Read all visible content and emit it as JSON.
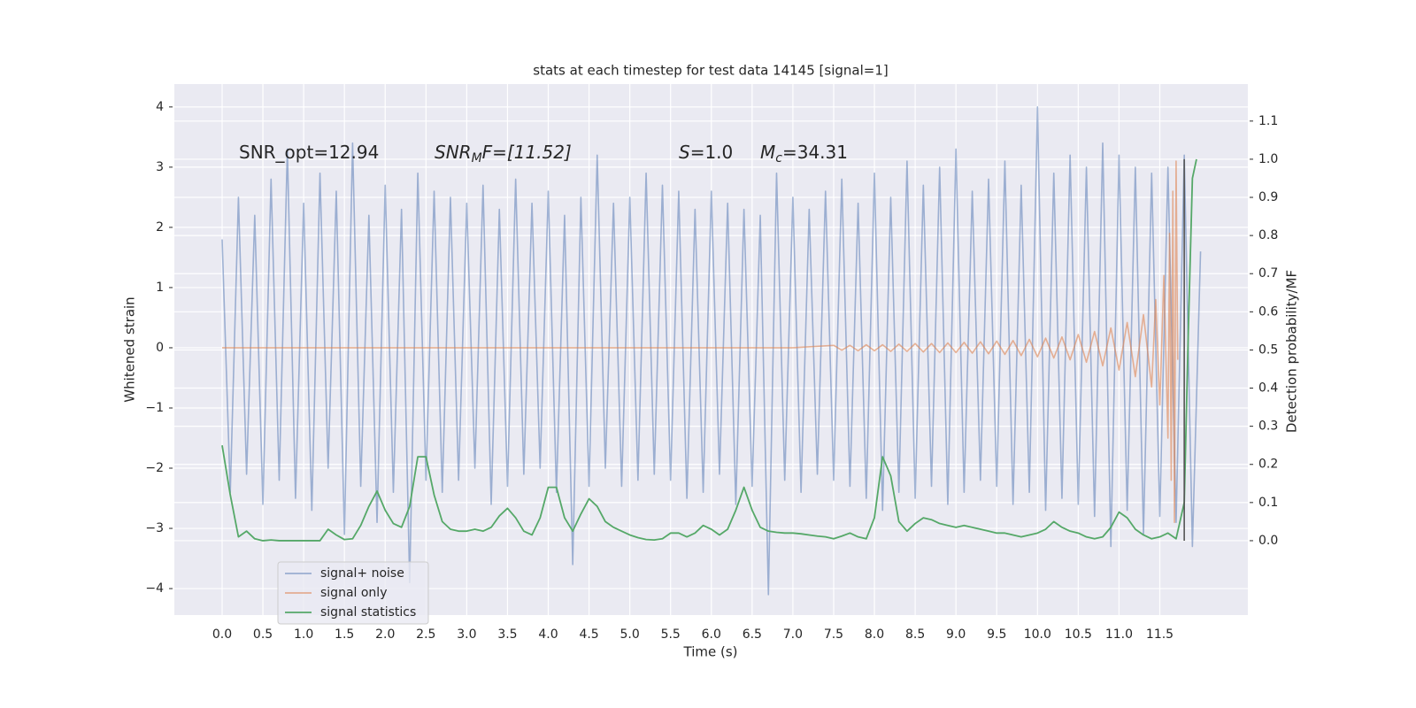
{
  "chart_data": {
    "type": "line",
    "title": "stats at each timestep for test data 14145 [signal=1]",
    "xlabel": "Time (s)",
    "ylabel": "Whitened strain",
    "y2label": "Detection probability/MF",
    "xlim": [
      -0.586,
      12.58
    ],
    "ylim": [
      -4.44,
      4.38
    ],
    "y2lim": [
      -0.195,
      1.197
    ],
    "xticks": [
      {
        "value": 0,
        "label": "0.0"
      },
      {
        "value": 0.5,
        "label": "0.5"
      },
      {
        "value": 1,
        "label": "1.0"
      },
      {
        "value": 1.5,
        "label": "1.5"
      },
      {
        "value": 2,
        "label": "2.0"
      },
      {
        "value": 2.5,
        "label": "2.5"
      },
      {
        "value": 3,
        "label": "3.0"
      },
      {
        "value": 3.5,
        "label": "3.5"
      },
      {
        "value": 4,
        "label": "4.0"
      },
      {
        "value": 4.5,
        "label": "4.5"
      },
      {
        "value": 5,
        "label": "5.0"
      },
      {
        "value": 5.5,
        "label": "5.5"
      },
      {
        "value": 6,
        "label": "6.0"
      },
      {
        "value": 6.5,
        "label": "6.5"
      },
      {
        "value": 7,
        "label": "7.0"
      },
      {
        "value": 7.5,
        "label": "7.5"
      },
      {
        "value": 8,
        "label": "8.0"
      },
      {
        "value": 8.5,
        "label": "8.5"
      },
      {
        "value": 9,
        "label": "9.0"
      },
      {
        "value": 9.5,
        "label": "9.5"
      },
      {
        "value": 10,
        "label": "10.0"
      },
      {
        "value": 10.5,
        "label": "10.5"
      },
      {
        "value": 11,
        "label": "11.0"
      },
      {
        "value": 11.5,
        "label": "11.5"
      }
    ],
    "yticks": [
      {
        "value": -4,
        "label": "−4"
      },
      {
        "value": -3,
        "label": "−3"
      },
      {
        "value": -2,
        "label": "−2"
      },
      {
        "value": -1,
        "label": "−1"
      },
      0,
      1,
      2,
      3,
      4
    ],
    "y2ticks": [
      {
        "value": 0,
        "label": "0.0"
      },
      {
        "value": 0.1,
        "label": "0.1"
      },
      {
        "value": 0.2,
        "label": "0.2"
      },
      {
        "value": 0.3,
        "label": "0.3"
      },
      {
        "value": 0.4,
        "label": "0.4"
      },
      {
        "value": 0.5,
        "label": "0.5"
      },
      {
        "value": 0.6,
        "label": "0.6"
      },
      {
        "value": 0.7,
        "label": "0.7"
      },
      {
        "value": 0.8,
        "label": "0.8"
      },
      {
        "value": 0.9,
        "label": "0.9"
      },
      {
        "value": 1,
        "label": "1.0"
      },
      {
        "value": 1.1,
        "label": "1.1"
      }
    ],
    "grid": true,
    "legend": "lower left",
    "annotations": [
      {
        "text": "SNR_opt=12.94"
      },
      {
        "math": "SNR",
        "sub": "M",
        "rest": "F=[11.52]"
      },
      {
        "math": "S",
        "rest": "=1.0"
      },
      {
        "math": "M",
        "sub": "c",
        "rest": "=34.31"
      }
    ],
    "vline": {
      "x": 11.8,
      "y2range": [
        0,
        1
      ],
      "color": "#555555"
    },
    "series": [
      {
        "name": "signal+ noise",
        "color": "#4c72b0",
        "x": [
          0,
          0.1,
          0.2,
          0.3,
          0.4,
          0.5,
          0.6,
          0.7,
          0.8,
          0.9,
          1,
          1.1,
          1.2,
          1.3,
          1.4,
          1.5,
          1.6,
          1.7,
          1.8,
          1.9,
          2,
          2.1,
          2.2,
          2.3,
          2.4,
          2.5,
          2.6,
          2.7,
          2.8,
          2.9,
          3,
          3.1,
          3.2,
          3.3,
          3.4,
          3.5,
          3.6,
          3.7,
          3.8,
          3.9,
          4,
          4.1,
          4.2,
          4.3,
          4.4,
          4.5,
          4.6,
          4.7,
          4.8,
          4.9,
          5,
          5.1,
          5.2,
          5.3,
          5.4,
          5.5,
          5.6,
          5.7,
          5.8,
          5.9,
          6,
          6.1,
          6.2,
          6.3,
          6.4,
          6.5,
          6.6,
          6.7,
          6.8,
          6.9,
          7,
          7.1,
          7.2,
          7.3,
          7.4,
          7.5,
          7.6,
          7.7,
          7.8,
          7.9,
          8,
          8.1,
          8.2,
          8.3,
          8.4,
          8.5,
          8.6,
          8.7,
          8.8,
          8.9,
          9,
          9.1,
          9.2,
          9.3,
          9.4,
          9.5,
          9.6,
          9.7,
          9.8,
          9.9,
          10,
          10.1,
          10.2,
          10.3,
          10.4,
          10.5,
          10.6,
          10.7,
          10.8,
          10.9,
          11,
          11.1,
          11.2,
          11.3,
          11.4,
          11.5,
          11.6,
          11.7,
          11.8,
          11.9,
          12
        ],
        "values": [
          1.8,
          -2.4,
          2.5,
          -2.1,
          2.2,
          -2.6,
          2.8,
          -2.2,
          3.3,
          -2.5,
          2.4,
          -2.7,
          2.9,
          -2.0,
          2.6,
          -3.1,
          3.4,
          -2.3,
          2.2,
          -2.9,
          2.7,
          -2.4,
          2.3,
          -3.9,
          2.9,
          -2.2,
          2.6,
          -2.4,
          2.5,
          -2.2,
          2.4,
          -2.0,
          2.7,
          -2.6,
          2.3,
          -2.3,
          2.8,
          -2.1,
          2.4,
          -2.0,
          2.6,
          -2.4,
          2.2,
          -3.6,
          2.5,
          -2.3,
          3.2,
          -2.0,
          2.4,
          -2.3,
          2.5,
          -2.2,
          2.9,
          -2.1,
          2.7,
          -2.2,
          2.6,
          -2.5,
          2.3,
          -2.4,
          2.6,
          -2.1,
          2.4,
          -2.6,
          2.3,
          -2.3,
          2.2,
          -4.1,
          2.9,
          -2.2,
          2.5,
          -2.4,
          2.3,
          -2.1,
          2.6,
          -2.2,
          2.8,
          -2.3,
          2.4,
          -2.5,
          2.9,
          -2.7,
          2.5,
          -2.4,
          3.1,
          -2.5,
          2.7,
          -2.3,
          3.0,
          -2.6,
          3.3,
          -2.4,
          2.6,
          -2.2,
          2.8,
          -2.3,
          3.1,
          -2.6,
          2.7,
          -2.4,
          4.0,
          -2.7,
          2.9,
          -2.5,
          3.2,
          -2.6,
          3.0,
          -2.8,
          3.4,
          -3.3,
          3.2,
          -2.7,
          3.0,
          -3.1,
          2.9,
          -2.8,
          3.0,
          -2.9,
          3.2,
          -3.3,
          1.6
        ]
      },
      {
        "name": "signal only",
        "color": "#dd8452",
        "x": [
          0,
          7,
          7.5,
          7.6,
          7.7,
          7.8,
          7.9,
          8,
          8.1,
          8.2,
          8.3,
          8.4,
          8.5,
          8.6,
          8.7,
          8.8,
          8.9,
          9,
          9.1,
          9.2,
          9.3,
          9.4,
          9.5,
          9.6,
          9.7,
          9.8,
          9.9,
          10,
          10.1,
          10.2,
          10.3,
          10.4,
          10.5,
          10.6,
          10.7,
          10.8,
          10.9,
          11,
          11.1,
          11.2,
          11.3,
          11.4,
          11.45,
          11.5,
          11.55,
          11.6,
          11.62,
          11.64,
          11.66,
          11.68,
          11.7,
          11.72
        ],
        "values": [
          0,
          0,
          0.04,
          -0.04,
          0.04,
          -0.05,
          0.05,
          -0.05,
          0.05,
          -0.06,
          0.06,
          -0.06,
          0.07,
          -0.07,
          0.07,
          -0.08,
          0.08,
          -0.08,
          0.09,
          -0.09,
          0.1,
          -0.1,
          0.11,
          -0.11,
          0.12,
          -0.13,
          0.14,
          -0.15,
          0.16,
          -0.17,
          0.18,
          -0.2,
          0.22,
          -0.24,
          0.27,
          -0.3,
          0.33,
          -0.37,
          0.42,
          -0.48,
          0.55,
          -0.65,
          0.8,
          -0.95,
          1.2,
          -1.5,
          1.9,
          -2.2,
          2.6,
          -2.9,
          3.1,
          -0.2
        ]
      },
      {
        "name": "signal statistics",
        "color": "#55a868",
        "axis": "y2",
        "x": [
          0,
          0.1,
          0.2,
          0.3,
          0.4,
          0.5,
          0.6,
          0.7,
          0.8,
          0.9,
          1,
          1.1,
          1.2,
          1.3,
          1.4,
          1.5,
          1.6,
          1.7,
          1.8,
          1.9,
          2,
          2.1,
          2.2,
          2.3,
          2.4,
          2.5,
          2.6,
          2.7,
          2.8,
          2.9,
          3,
          3.1,
          3.2,
          3.3,
          3.4,
          3.5,
          3.6,
          3.7,
          3.8,
          3.9,
          4,
          4.1,
          4.2,
          4.3,
          4.4,
          4.5,
          4.6,
          4.7,
          4.8,
          4.9,
          5,
          5.1,
          5.2,
          5.3,
          5.4,
          5.5,
          5.6,
          5.7,
          5.8,
          5.9,
          6,
          6.1,
          6.2,
          6.3,
          6.4,
          6.5,
          6.6,
          6.7,
          6.8,
          6.9,
          7,
          7.1,
          7.2,
          7.3,
          7.4,
          7.5,
          7.6,
          7.7,
          7.8,
          7.9,
          8,
          8.1,
          8.2,
          8.3,
          8.4,
          8.5,
          8.6,
          8.7,
          8.8,
          8.9,
          9,
          9.1,
          9.2,
          9.3,
          9.4,
          9.5,
          9.6,
          9.7,
          9.8,
          9.9,
          10,
          10.1,
          10.2,
          10.3,
          10.4,
          10.5,
          10.6,
          10.7,
          10.8,
          10.9,
          11,
          11.1,
          11.2,
          11.3,
          11.4,
          11.5,
          11.6,
          11.7,
          11.8,
          11.85,
          11.9,
          11.95
        ],
        "values": [
          0.25,
          0.12,
          0.01,
          0.025,
          0.005,
          0,
          0.002,
          0,
          0,
          0,
          0,
          0,
          0,
          0.03,
          0.015,
          0.003,
          0.005,
          0.04,
          0.09,
          0.13,
          0.08,
          0.045,
          0.035,
          0.09,
          0.22,
          0.22,
          0.12,
          0.05,
          0.03,
          0.025,
          0.025,
          0.03,
          0.025,
          0.035,
          0.065,
          0.085,
          0.06,
          0.025,
          0.015,
          0.06,
          0.14,
          0.14,
          0.06,
          0.025,
          0.07,
          0.11,
          0.09,
          0.05,
          0.035,
          0.025,
          0.015,
          0.008,
          0.003,
          0.002,
          0.005,
          0.02,
          0.02,
          0.01,
          0.02,
          0.04,
          0.03,
          0.015,
          0.03,
          0.08,
          0.14,
          0.08,
          0.035,
          0.025,
          0.022,
          0.02,
          0.02,
          0.018,
          0.015,
          0.012,
          0.01,
          0.005,
          0.012,
          0.02,
          0.01,
          0.005,
          0.06,
          0.22,
          0.17,
          0.05,
          0.025,
          0.045,
          0.06,
          0.055,
          0.045,
          0.04,
          0.035,
          0.04,
          0.035,
          0.03,
          0.025,
          0.02,
          0.02,
          0.015,
          0.01,
          0.015,
          0.02,
          0.03,
          0.05,
          0.035,
          0.025,
          0.02,
          0.01,
          0.005,
          0.01,
          0.035,
          0.075,
          0.06,
          0.03,
          0.015,
          0.005,
          0.01,
          0.02,
          0.005,
          0.1,
          0.55,
          0.95,
          1.0
        ]
      }
    ]
  }
}
